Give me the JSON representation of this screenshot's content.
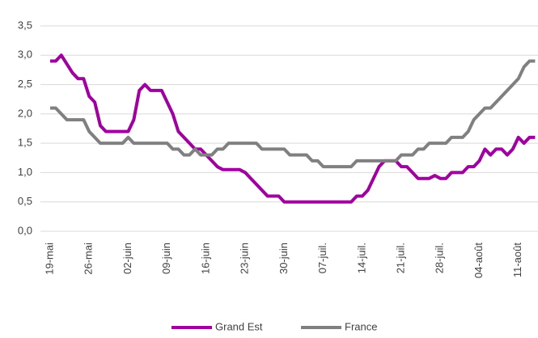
{
  "chart_data": {
    "type": "line",
    "categories": [
      "19-mai",
      null,
      null,
      null,
      null,
      null,
      null,
      "26-mai",
      null,
      null,
      null,
      null,
      null,
      null,
      "02-juin",
      null,
      null,
      null,
      null,
      null,
      null,
      "09-juin",
      null,
      null,
      null,
      null,
      null,
      null,
      "16-juin",
      null,
      null,
      null,
      null,
      null,
      null,
      "23-juin",
      null,
      null,
      null,
      null,
      null,
      null,
      "30-juin",
      null,
      null,
      null,
      null,
      null,
      null,
      "07-juil.",
      null,
      null,
      null,
      null,
      null,
      null,
      "14-juil.",
      null,
      null,
      null,
      null,
      null,
      null,
      "21-juil.",
      null,
      null,
      null,
      null,
      null,
      null,
      "28-juil.",
      null,
      null,
      null,
      null,
      null,
      null,
      "04-août",
      null,
      null,
      null,
      null,
      null,
      null,
      "11-août",
      null,
      null,
      null
    ],
    "series": [
      {
        "name": "Grand Est",
        "color": "#a000a0",
        "values": [
          2.9,
          2.9,
          3.0,
          2.85,
          2.7,
          2.6,
          2.6,
          2.3,
          2.2,
          1.8,
          1.7,
          1.7,
          1.7,
          1.7,
          1.7,
          1.9,
          2.4,
          2.5,
          2.4,
          2.4,
          2.4,
          2.2,
          2.0,
          1.7,
          1.6,
          1.5,
          1.4,
          1.4,
          1.3,
          1.2,
          1.1,
          1.05,
          1.05,
          1.05,
          1.05,
          1.0,
          0.9,
          0.8,
          0.7,
          0.6,
          0.6,
          0.6,
          0.5,
          0.5,
          0.5,
          0.5,
          0.5,
          0.5,
          0.5,
          0.5,
          0.5,
          0.5,
          0.5,
          0.5,
          0.5,
          0.6,
          0.6,
          0.7,
          0.9,
          1.1,
          1.2,
          1.2,
          1.2,
          1.1,
          1.1,
          1.0,
          0.9,
          0.9,
          0.9,
          0.95,
          0.9,
          0.9,
          1.0,
          1.0,
          1.0,
          1.1,
          1.1,
          1.2,
          1.4,
          1.3,
          1.4,
          1.4,
          1.3,
          1.4,
          1.6,
          1.5,
          1.6,
          1.6
        ]
      },
      {
        "name": "France",
        "color": "#808080",
        "values": [
          2.1,
          2.1,
          2.0,
          1.9,
          1.9,
          1.9,
          1.9,
          1.7,
          1.6,
          1.5,
          1.5,
          1.5,
          1.5,
          1.5,
          1.6,
          1.5,
          1.5,
          1.5,
          1.5,
          1.5,
          1.5,
          1.5,
          1.4,
          1.4,
          1.3,
          1.3,
          1.4,
          1.3,
          1.3,
          1.3,
          1.4,
          1.4,
          1.5,
          1.5,
          1.5,
          1.5,
          1.5,
          1.5,
          1.4,
          1.4,
          1.4,
          1.4,
          1.4,
          1.3,
          1.3,
          1.3,
          1.3,
          1.2,
          1.2,
          1.1,
          1.1,
          1.1,
          1.1,
          1.1,
          1.1,
          1.2,
          1.2,
          1.2,
          1.2,
          1.2,
          1.2,
          1.2,
          1.2,
          1.3,
          1.3,
          1.3,
          1.4,
          1.4,
          1.5,
          1.5,
          1.5,
          1.5,
          1.6,
          1.6,
          1.6,
          1.7,
          1.9,
          2.0,
          2.1,
          2.1,
          2.2,
          2.3,
          2.4,
          2.5,
          2.6,
          2.8,
          2.9,
          2.9
        ]
      }
    ],
    "ylim": [
      0,
      3.5
    ],
    "yticks": [
      {
        "value": 0,
        "label": "0,0"
      },
      {
        "value": 0.5,
        "label": "0,5"
      },
      {
        "value": 1,
        "label": "1,0"
      },
      {
        "value": 1.5,
        "label": "1,5"
      },
      {
        "value": 2,
        "label": "2,0"
      },
      {
        "value": 2.5,
        "label": "2,5"
      },
      {
        "value": 3,
        "label": "3,0"
      },
      {
        "value": 3.5,
        "label": "3,5"
      }
    ],
    "grid": true,
    "legend": "bottom"
  }
}
